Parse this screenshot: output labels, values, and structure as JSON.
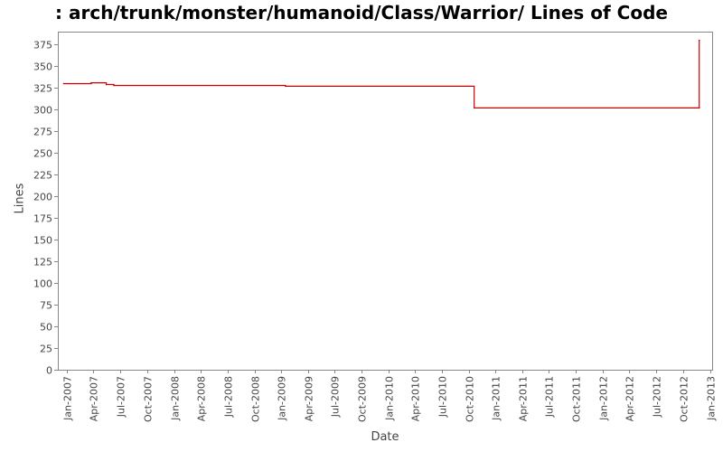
{
  "chart_data": {
    "type": "line",
    "title": ": arch/trunk/monster/humanoid/Class/Warrior/ Lines of Code",
    "xlabel": "Date",
    "ylabel": "Lines",
    "ylim": [
      0,
      390
    ],
    "xlim": [
      "2006-12-01",
      "2013-01-08"
    ],
    "yticks": [
      0,
      25,
      50,
      75,
      100,
      125,
      150,
      175,
      200,
      225,
      250,
      275,
      300,
      325,
      350,
      375
    ],
    "xticks": [
      {
        "label": "Jan-2007",
        "date": "2007-01-01"
      },
      {
        "label": "Apr-2007",
        "date": "2007-04-01"
      },
      {
        "label": "Jul-2007",
        "date": "2007-07-01"
      },
      {
        "label": "Oct-2007",
        "date": "2007-10-01"
      },
      {
        "label": "Jan-2008",
        "date": "2008-01-01"
      },
      {
        "label": "Apr-2008",
        "date": "2008-04-01"
      },
      {
        "label": "Jul-2008",
        "date": "2008-07-01"
      },
      {
        "label": "Oct-2008",
        "date": "2008-10-01"
      },
      {
        "label": "Jan-2009",
        "date": "2009-01-01"
      },
      {
        "label": "Apr-2009",
        "date": "2009-04-01"
      },
      {
        "label": "Jul-2009",
        "date": "2009-07-01"
      },
      {
        "label": "Oct-2009",
        "date": "2009-10-01"
      },
      {
        "label": "Jan-2010",
        "date": "2010-01-01"
      },
      {
        "label": "Apr-2010",
        "date": "2010-04-01"
      },
      {
        "label": "Jul-2010",
        "date": "2010-07-01"
      },
      {
        "label": "Oct-2010",
        "date": "2010-10-01"
      },
      {
        "label": "Jan-2011",
        "date": "2011-01-01"
      },
      {
        "label": "Apr-2011",
        "date": "2011-04-01"
      },
      {
        "label": "Jul-2011",
        "date": "2011-07-01"
      },
      {
        "label": "Oct-2011",
        "date": "2011-10-01"
      },
      {
        "label": "Jan-2012",
        "date": "2012-01-01"
      },
      {
        "label": "Apr-2012",
        "date": "2012-04-01"
      },
      {
        "label": "Jul-2012",
        "date": "2012-07-01"
      },
      {
        "label": "Oct-2012",
        "date": "2012-10-01"
      },
      {
        "label": "Jan-2013",
        "date": "2013-01-01"
      }
    ],
    "grid": false,
    "line_color": "#cc0000",
    "series": [
      {
        "step": true,
        "x": [
          "2006-12-21",
          "2007-03-25",
          "2007-05-15",
          "2007-06-10",
          "2009-01-15",
          "2010-10-20",
          "2012-11-25",
          "2012-11-25"
        ],
        "y": [
          330,
          331,
          329,
          328,
          327,
          302,
          302,
          380
        ]
      }
    ]
  }
}
